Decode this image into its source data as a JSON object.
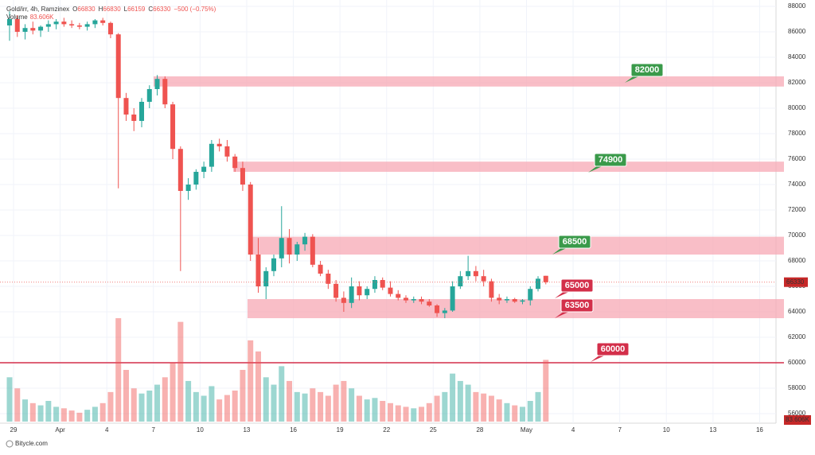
{
  "chart_data": {
    "type": "candlestick",
    "symbol": "Gold/irr, 4h, Ramzinex",
    "ohlc_labels": [
      "O",
      "H",
      "L",
      "C"
    ],
    "header_ohlc": [
      66830,
      66830,
      66159,
      66330
    ],
    "change": "−500 (−0.75%)",
    "volume_label": "Volume",
    "volume_last": "83.606K",
    "footer": "Bitycle.com",
    "up_color": "#26a69a",
    "down_color": "#ef5350",
    "ylim": [
      56000,
      88000
    ],
    "yticks": [
      56000,
      58000,
      60000,
      62000,
      64000,
      66000,
      68000,
      70000,
      72000,
      74000,
      76000,
      78000,
      80000,
      82000,
      84000,
      86000,
      88000
    ],
    "grid": true,
    "xlabels": [
      "29",
      "Apr",
      "4",
      "7",
      "10",
      "13",
      "16",
      "19",
      "22",
      "25",
      "28",
      "May",
      "4",
      "7",
      "10",
      "13",
      "16"
    ],
    "candles": [
      [
        86500,
        87600,
        85300,
        87000
      ],
      [
        87000,
        87300,
        85600,
        86000
      ],
      [
        86000,
        86600,
        85400,
        86300
      ],
      [
        86300,
        86800,
        85800,
        86100
      ],
      [
        86100,
        86500,
        85600,
        86400
      ],
      [
        86400,
        86900,
        86000,
        86600
      ],
      [
        86600,
        87000,
        86200,
        86800
      ],
      [
        86800,
        87100,
        86400,
        86600
      ],
      [
        86600,
        86900,
        86300,
        86500
      ],
      [
        86500,
        86700,
        86200,
        86400
      ],
      [
        86400,
        86800,
        86100,
        86600
      ],
      [
        86600,
        87000,
        86300,
        86900
      ],
      [
        86900,
        87100,
        86500,
        86700
      ],
      [
        86700,
        86800,
        85500,
        85800
      ],
      [
        85800,
        85900,
        73700,
        80800
      ],
      [
        80800,
        81200,
        79000,
        79500
      ],
      [
        79500,
        80000,
        78200,
        79000
      ],
      [
        79000,
        80800,
        78500,
        80500
      ],
      [
        80500,
        81800,
        80000,
        81500
      ],
      [
        81500,
        82600,
        81000,
        82300
      ],
      [
        82300,
        82500,
        80000,
        80300
      ],
      [
        80300,
        80500,
        76000,
        76800
      ],
      [
        76800,
        77000,
        67200,
        73500
      ],
      [
        73500,
        74500,
        72800,
        74000
      ],
      [
        74000,
        75200,
        73600,
        75000
      ],
      [
        75000,
        75800,
        74500,
        75400
      ],
      [
        75400,
        77500,
        75000,
        77200
      ],
      [
        77200,
        77600,
        76600,
        77000
      ],
      [
        77000,
        77500,
        75800,
        76200
      ],
      [
        76200,
        76400,
        75000,
        75300
      ],
      [
        75300,
        75800,
        73500,
        74000
      ],
      [
        74000,
        74200,
        68000,
        68500
      ],
      [
        68500,
        69800,
        65500,
        66000
      ],
      [
        66000,
        67500,
        65000,
        67200
      ],
      [
        67200,
        68500,
        66800,
        68200
      ],
      [
        68200,
        72300,
        67500,
        69800
      ],
      [
        69800,
        70500,
        67800,
        68500
      ],
      [
        68500,
        69500,
        68000,
        69300
      ],
      [
        69300,
        70200,
        68800,
        69900
      ],
      [
        69900,
        70100,
        67500,
        67700
      ],
      [
        67700,
        68000,
        66800,
        67000
      ],
      [
        67000,
        67300,
        65800,
        66200
      ],
      [
        66200,
        66500,
        64800,
        65100
      ],
      [
        65100,
        65600,
        64000,
        64700
      ],
      [
        64700,
        66700,
        64300,
        66000
      ],
      [
        66000,
        66400,
        64900,
        65300
      ],
      [
        65300,
        66000,
        65000,
        65800
      ],
      [
        65800,
        66800,
        65500,
        66500
      ],
      [
        66500,
        66700,
        65700,
        65900
      ],
      [
        65900,
        66400,
        65200,
        65400
      ],
      [
        65400,
        65700,
        64900,
        65100
      ],
      [
        65100,
        65300,
        64700,
        64900
      ],
      [
        64900,
        65200,
        64700,
        65000
      ],
      [
        65000,
        65200,
        64600,
        64800
      ],
      [
        64800,
        65000,
        64400,
        64500
      ],
      [
        64500,
        64600,
        63600,
        63900
      ],
      [
        63900,
        64300,
        63500,
        64100
      ],
      [
        64100,
        66400,
        64000,
        66000
      ],
      [
        66000,
        67200,
        65800,
        66800
      ],
      [
        66800,
        68400,
        66500,
        67200
      ],
      [
        67200,
        67600,
        66400,
        66800
      ],
      [
        66800,
        67300,
        66000,
        66400
      ],
      [
        66400,
        66600,
        64800,
        65100
      ],
      [
        65100,
        65400,
        64600,
        64900
      ],
      [
        64900,
        65200,
        64700,
        65000
      ],
      [
        65000,
        65100,
        64700,
        64800
      ],
      [
        64800,
        65000,
        64600,
        64900
      ],
      [
        64900,
        66000,
        64500,
        65800
      ],
      [
        65800,
        66800,
        65600,
        66600
      ],
      [
        66830,
        66830,
        66159,
        66330
      ]
    ],
    "volumes": [
      60,
      45,
      30,
      25,
      22,
      28,
      20,
      18,
      15,
      12,
      16,
      20,
      25,
      40,
      140,
      70,
      45,
      38,
      42,
      50,
      60,
      80,
      135,
      55,
      40,
      35,
      48,
      30,
      36,
      42,
      70,
      110,
      95,
      60,
      50,
      75,
      55,
      40,
      38,
      45,
      40,
      35,
      50,
      55,
      45,
      35,
      30,
      32,
      28,
      25,
      22,
      20,
      18,
      20,
      25,
      35,
      40,
      65,
      55,
      50,
      40,
      38,
      35,
      30,
      25,
      22,
      20,
      28,
      40,
      83.606
    ],
    "zones": [
      {
        "label": "82000",
        "low": 81700,
        "high": 82500
      },
      {
        "label": "74900",
        "low": 75000,
        "high": 75800
      },
      {
        "label": "68500",
        "low": 68500,
        "high": 69900
      },
      {
        "label": "63500",
        "low": 63500,
        "high": 65000
      }
    ],
    "zone_labels": [
      "65000"
    ],
    "support_line": {
      "label": "60000",
      "value": 60000
    }
  }
}
